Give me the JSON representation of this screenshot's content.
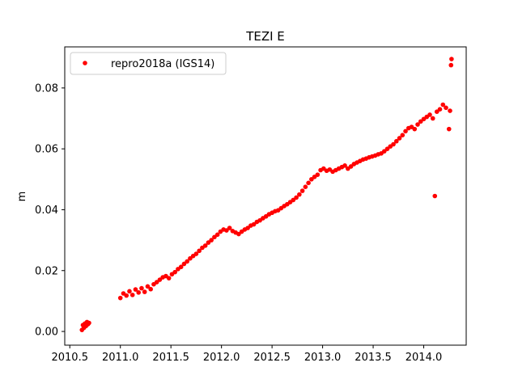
{
  "chart_data": {
    "type": "scatter",
    "title": "TEZI E",
    "xlabel": "",
    "ylabel": "m",
    "xlim": [
      2010.45,
      2014.42
    ],
    "ylim": [
      -0.0045,
      0.0935
    ],
    "x_ticks": [
      {
        "value": 2010.5,
        "label": "2010.5"
      },
      {
        "value": 2011.0,
        "label": "2011.0"
      },
      {
        "value": 2011.5,
        "label": "2011.5"
      },
      {
        "value": 2012.0,
        "label": "2012.0"
      },
      {
        "value": 2012.5,
        "label": "2012.5"
      },
      {
        "value": 2013.0,
        "label": "2013.0"
      },
      {
        "value": 2013.5,
        "label": "2013.5"
      },
      {
        "value": 2014.0,
        "label": "2014.0"
      }
    ],
    "y_ticks": [
      {
        "value": 0.0,
        "label": "0.00"
      },
      {
        "value": 0.02,
        "label": "0.02"
      },
      {
        "value": 0.04,
        "label": "0.04"
      },
      {
        "value": 0.06,
        "label": "0.06"
      },
      {
        "value": 0.08,
        "label": "0.08"
      }
    ],
    "grid": false,
    "legend_position": "top-left",
    "series": [
      {
        "name": "repro2018a (IGS14)",
        "color": "#ff0000",
        "marker": "circle",
        "points": [
          [
            2010.62,
            0.0005
          ],
          [
            2010.63,
            0.0021
          ],
          [
            2010.64,
            0.0012
          ],
          [
            2010.65,
            0.0026
          ],
          [
            2010.66,
            0.0018
          ],
          [
            2010.67,
            0.0031
          ],
          [
            2010.68,
            0.0024
          ],
          [
            2010.69,
            0.0028
          ],
          [
            2011.0,
            0.011
          ],
          [
            2011.03,
            0.0125
          ],
          [
            2011.06,
            0.0118
          ],
          [
            2011.09,
            0.0132
          ],
          [
            2011.12,
            0.012
          ],
          [
            2011.15,
            0.0138
          ],
          [
            2011.18,
            0.0128
          ],
          [
            2011.21,
            0.0142
          ],
          [
            2011.24,
            0.013
          ],
          [
            2011.27,
            0.0148
          ],
          [
            2011.3,
            0.0139
          ],
          [
            2011.33,
            0.0155
          ],
          [
            2011.36,
            0.0162
          ],
          [
            2011.39,
            0.017
          ],
          [
            2011.42,
            0.0178
          ],
          [
            2011.45,
            0.0182
          ],
          [
            2011.48,
            0.0175
          ],
          [
            2011.51,
            0.0188
          ],
          [
            2011.54,
            0.0195
          ],
          [
            2011.57,
            0.0205
          ],
          [
            2011.6,
            0.0212
          ],
          [
            2011.63,
            0.0222
          ],
          [
            2011.66,
            0.023
          ],
          [
            2011.69,
            0.024
          ],
          [
            2011.72,
            0.0248
          ],
          [
            2011.75,
            0.0255
          ],
          [
            2011.78,
            0.0265
          ],
          [
            2011.81,
            0.0275
          ],
          [
            2011.84,
            0.0282
          ],
          [
            2011.87,
            0.0292
          ],
          [
            2011.9,
            0.03
          ],
          [
            2011.93,
            0.031
          ],
          [
            2011.96,
            0.0318
          ],
          [
            2011.99,
            0.0328
          ],
          [
            2012.02,
            0.0335
          ],
          [
            2012.05,
            0.0332
          ],
          [
            2012.08,
            0.034
          ],
          [
            2012.11,
            0.033
          ],
          [
            2012.14,
            0.0325
          ],
          [
            2012.17,
            0.032
          ],
          [
            2012.2,
            0.0328
          ],
          [
            2012.23,
            0.0335
          ],
          [
            2012.26,
            0.034
          ],
          [
            2012.29,
            0.0348
          ],
          [
            2012.32,
            0.0352
          ],
          [
            2012.35,
            0.036
          ],
          [
            2012.38,
            0.0365
          ],
          [
            2012.41,
            0.0372
          ],
          [
            2012.44,
            0.0378
          ],
          [
            2012.47,
            0.0385
          ],
          [
            2012.5,
            0.039
          ],
          [
            2012.53,
            0.0395
          ],
          [
            2012.56,
            0.0398
          ],
          [
            2012.59,
            0.0405
          ],
          [
            2012.62,
            0.0412
          ],
          [
            2012.65,
            0.0418
          ],
          [
            2012.68,
            0.0425
          ],
          [
            2012.71,
            0.0432
          ],
          [
            2012.74,
            0.044
          ],
          [
            2012.77,
            0.045
          ],
          [
            2012.8,
            0.0462
          ],
          [
            2012.83,
            0.0475
          ],
          [
            2012.86,
            0.0488
          ],
          [
            2012.89,
            0.05
          ],
          [
            2012.92,
            0.0508
          ],
          [
            2012.95,
            0.0515
          ],
          [
            2012.98,
            0.053
          ],
          [
            2013.01,
            0.0535
          ],
          [
            2013.04,
            0.0528
          ],
          [
            2013.07,
            0.0532
          ],
          [
            2013.1,
            0.0525
          ],
          [
            2013.13,
            0.053
          ],
          [
            2013.16,
            0.0535
          ],
          [
            2013.19,
            0.054
          ],
          [
            2013.22,
            0.0545
          ],
          [
            2013.25,
            0.0535
          ],
          [
            2013.28,
            0.0542
          ],
          [
            2013.31,
            0.055
          ],
          [
            2013.34,
            0.0555
          ],
          [
            2013.37,
            0.056
          ],
          [
            2013.4,
            0.0565
          ],
          [
            2013.43,
            0.0568
          ],
          [
            2013.46,
            0.0572
          ],
          [
            2013.49,
            0.0575
          ],
          [
            2013.52,
            0.0578
          ],
          [
            2013.55,
            0.0582
          ],
          [
            2013.58,
            0.0585
          ],
          [
            2013.61,
            0.0592
          ],
          [
            2013.64,
            0.06
          ],
          [
            2013.67,
            0.0608
          ],
          [
            2013.7,
            0.0615
          ],
          [
            2013.73,
            0.0625
          ],
          [
            2013.76,
            0.0635
          ],
          [
            2013.79,
            0.0645
          ],
          [
            2013.82,
            0.0658
          ],
          [
            2013.85,
            0.0668
          ],
          [
            2013.88,
            0.0672
          ],
          [
            2013.91,
            0.0665
          ],
          [
            2013.94,
            0.068
          ],
          [
            2013.97,
            0.069
          ],
          [
            2014.0,
            0.0698
          ],
          [
            2014.03,
            0.0705
          ],
          [
            2014.06,
            0.0712
          ],
          [
            2014.09,
            0.07
          ],
          [
            2014.11,
            0.0445
          ],
          [
            2014.13,
            0.0722
          ],
          [
            2014.16,
            0.073
          ],
          [
            2014.19,
            0.0745
          ],
          [
            2014.22,
            0.0735
          ],
          [
            2014.25,
            0.0665
          ],
          [
            2014.26,
            0.0725
          ],
          [
            2014.27,
            0.0875
          ],
          [
            2014.275,
            0.0895
          ]
        ]
      }
    ]
  }
}
